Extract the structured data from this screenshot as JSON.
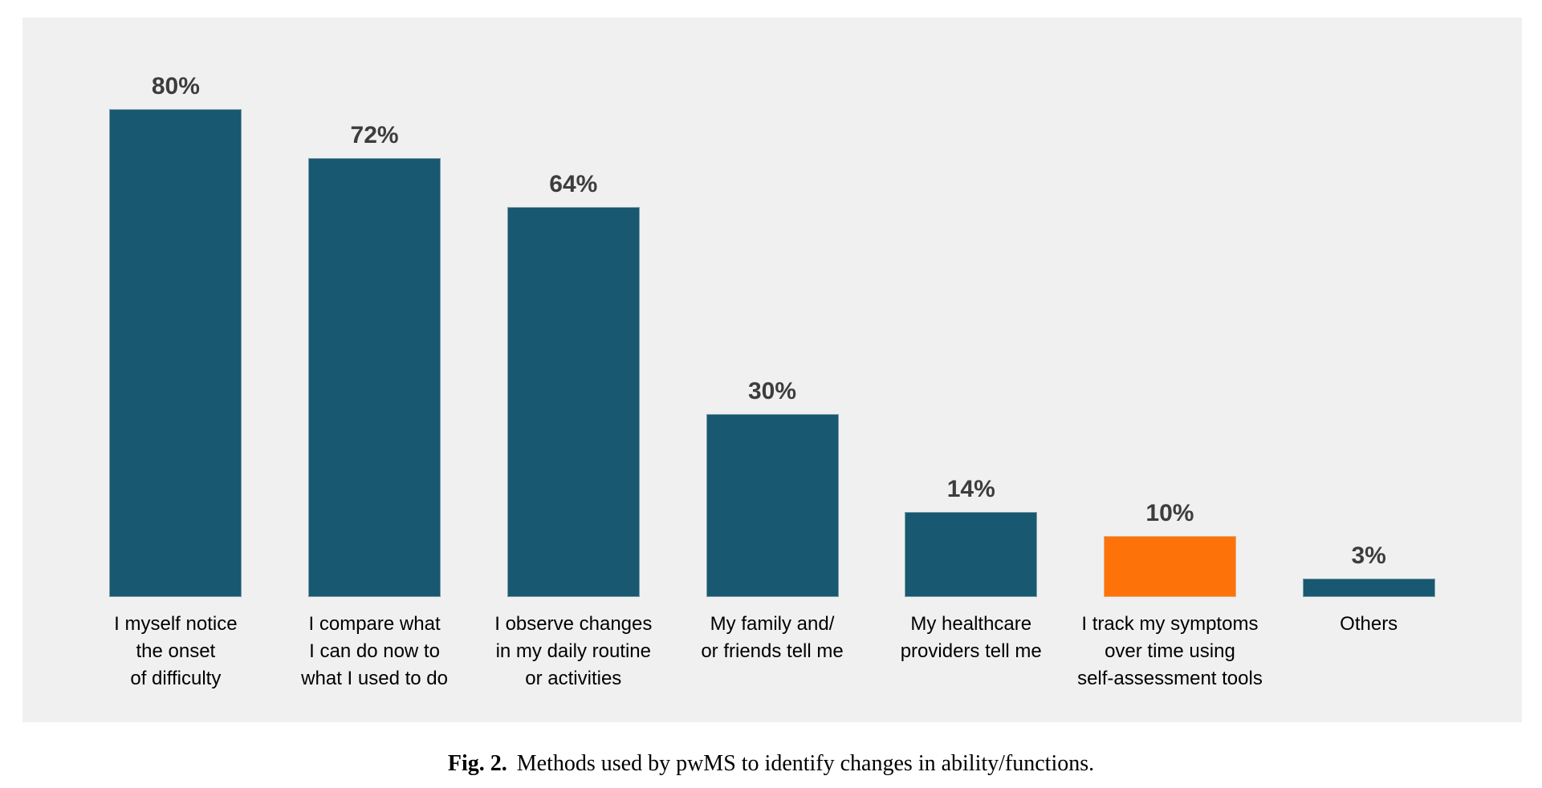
{
  "chart_data": {
    "type": "bar",
    "categories": [
      "I myself notice\nthe onset\nof difficulty",
      "I compare what\nI can do now to\nwhat I used to do",
      "I observe changes\nin my daily routine\nor activities",
      "My family and/\nor friends tell me",
      "My healthcare\nproviders tell me",
      "I track my symptoms\nover time using\nself-assessment tools",
      "Others"
    ],
    "values": [
      80,
      72,
      64,
      30,
      14,
      10,
      3
    ],
    "value_labels": [
      "80%",
      "72%",
      "64%",
      "30%",
      "14%",
      "10%",
      "3%"
    ],
    "highlight_index": 5,
    "title": "",
    "xlabel": "",
    "ylabel": "",
    "ylim": [
      0,
      100
    ],
    "unit": "%",
    "grid": false,
    "legend": false
  },
  "colors": {
    "bar_default": "#185870",
    "bar_highlight": "#FD7309",
    "panel_bg": "#F0F0F0",
    "value_label": "#3D3D3D",
    "category_label": "#000000"
  },
  "caption": {
    "label": "Fig. 2.",
    "text": "Methods used by pwMS to identify changes in ability/functions."
  }
}
